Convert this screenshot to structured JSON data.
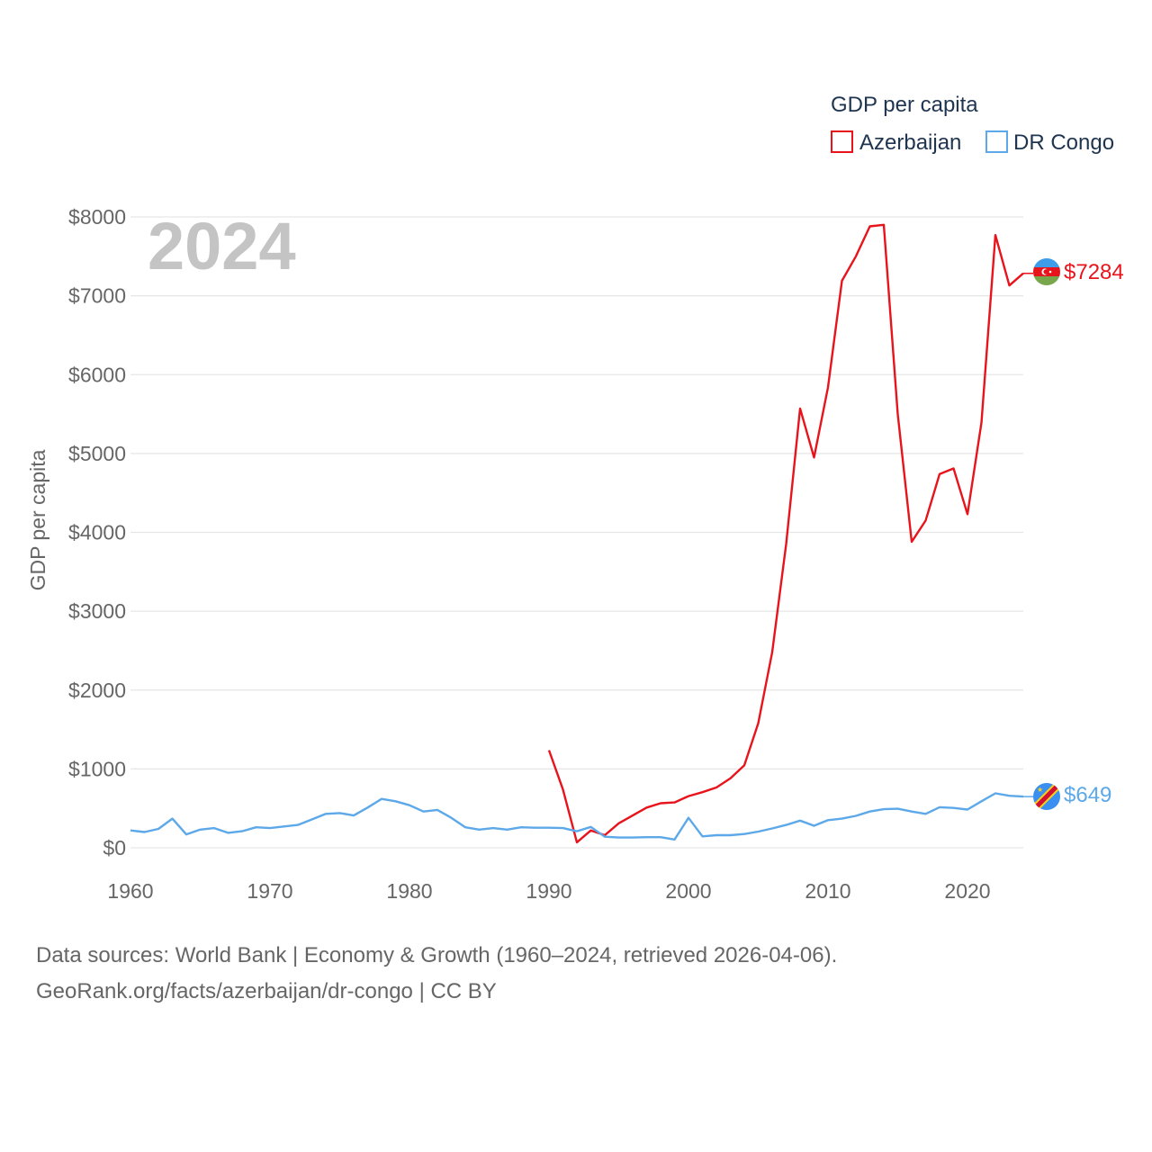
{
  "chart_data": {
    "type": "line",
    "legend_title": "GDP per capita",
    "ylabel": "GDP per capita",
    "xlabel": "",
    "current_year_label": "2024",
    "xlim": [
      1960,
      2024
    ],
    "ylim": [
      0,
      8000
    ],
    "x_ticks": [
      1960,
      1970,
      1980,
      1990,
      2000,
      2010,
      2020
    ],
    "x_tick_labels": [
      "1960",
      "1970",
      "1980",
      "1990",
      "2000",
      "2010",
      "2020"
    ],
    "y_ticks": [
      0,
      1000,
      2000,
      3000,
      4000,
      5000,
      6000,
      7000,
      8000
    ],
    "y_tick_labels": [
      "$0",
      "$1000",
      "$2000",
      "$3000",
      "$4000",
      "$5000",
      "$6000",
      "$7000",
      "$8000"
    ],
    "grid": true,
    "series": [
      {
        "name": "Azerbaijan",
        "color": "#e8141c",
        "end_label": "$7284",
        "flag_icon": "azerbaijan-flag-icon",
        "x": [
          1990,
          1991,
          1992,
          1993,
          1994,
          1995,
          1996,
          1997,
          1998,
          1999,
          2000,
          2001,
          2002,
          2003,
          2004,
          2005,
          2006,
          2007,
          2008,
          2009,
          2010,
          2011,
          2012,
          2013,
          2014,
          2015,
          2016,
          2017,
          2018,
          2019,
          2020,
          2021,
          2022,
          2023,
          2024
        ],
        "values": [
          1237,
          740,
          70,
          220,
          160,
          310,
          410,
          510,
          565,
          575,
          655,
          705,
          765,
          880,
          1045,
          1580,
          2480,
          3850,
          5570,
          4950,
          5840,
          7190,
          7500,
          7880,
          7900,
          5500,
          3880,
          4150,
          4740,
          4810,
          4230,
          5390,
          7770,
          7130,
          7284
        ]
      },
      {
        "name": "DR Congo",
        "color": "#5ca8e8",
        "end_label": "$649",
        "flag_icon": "dr-congo-flag-icon",
        "x": [
          1960,
          1961,
          1962,
          1963,
          1964,
          1965,
          1966,
          1967,
          1968,
          1969,
          1970,
          1971,
          1972,
          1973,
          1974,
          1975,
          1976,
          1977,
          1978,
          1979,
          1980,
          1981,
          1982,
          1983,
          1984,
          1985,
          1986,
          1987,
          1988,
          1989,
          1990,
          1991,
          1992,
          1993,
          1994,
          1995,
          1996,
          1997,
          1998,
          1999,
          2000,
          2001,
          2002,
          2003,
          2004,
          2005,
          2006,
          2007,
          2008,
          2009,
          2010,
          2011,
          2012,
          2013,
          2014,
          2015,
          2016,
          2017,
          2018,
          2019,
          2020,
          2021,
          2022,
          2023,
          2024
        ],
        "values": [
          220,
          200,
          240,
          370,
          170,
          230,
          250,
          190,
          210,
          260,
          250,
          270,
          290,
          360,
          430,
          440,
          410,
          510,
          620,
          590,
          540,
          460,
          480,
          380,
          260,
          230,
          250,
          230,
          260,
          255,
          255,
          250,
          210,
          265,
          140,
          130,
          130,
          135,
          135,
          105,
          380,
          145,
          160,
          160,
          175,
          205,
          245,
          290,
          345,
          280,
          350,
          370,
          405,
          460,
          490,
          495,
          460,
          430,
          515,
          505,
          485,
          590,
          690,
          660,
          649
        ]
      }
    ]
  },
  "footer": {
    "line1": "Data sources: World Bank | Economy & Growth (1960–2024, retrieved 2026-04-06).",
    "line2": "GeoRank.org/facts/azerbaijan/dr-congo | CC BY"
  }
}
